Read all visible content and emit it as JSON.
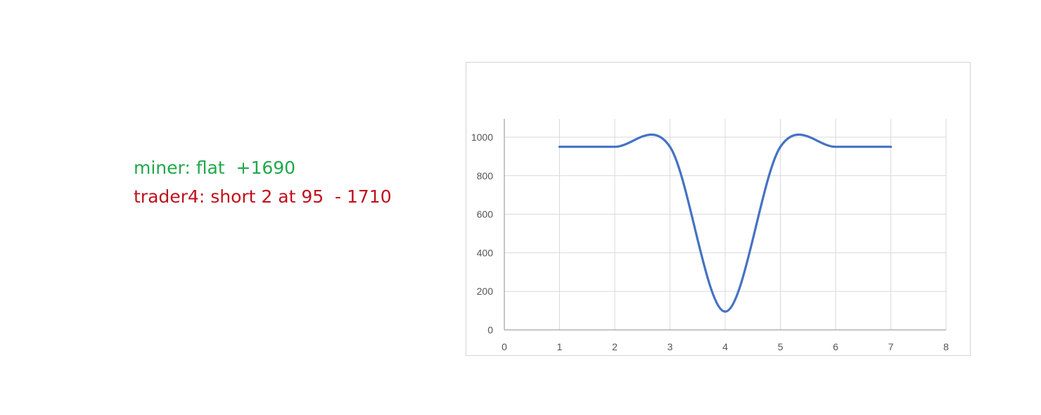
{
  "notes": {
    "miner": "miner: flat  +1690",
    "trader": "trader4: short 2 at 95  - 1710",
    "miner_color": "#21a84a",
    "trader_color": "#c0101c"
  },
  "chart_data": {
    "type": "line",
    "smooth": true,
    "series": [
      {
        "x": [
          1,
          2,
          3,
          4,
          5,
          6,
          7
        ],
        "y": [
          950,
          950,
          950,
          95,
          950,
          950,
          950
        ],
        "color": "#4472c4"
      }
    ],
    "xlim": [
      0,
      8
    ],
    "ylim": [
      0,
      1000
    ],
    "x_ticks": [
      0,
      1,
      2,
      3,
      4,
      5,
      6,
      7,
      8
    ],
    "y_ticks": [
      0,
      200,
      400,
      600,
      800,
      1000
    ],
    "grid": true,
    "legend": "none",
    "title": "",
    "xlabel": "",
    "ylabel": ""
  }
}
